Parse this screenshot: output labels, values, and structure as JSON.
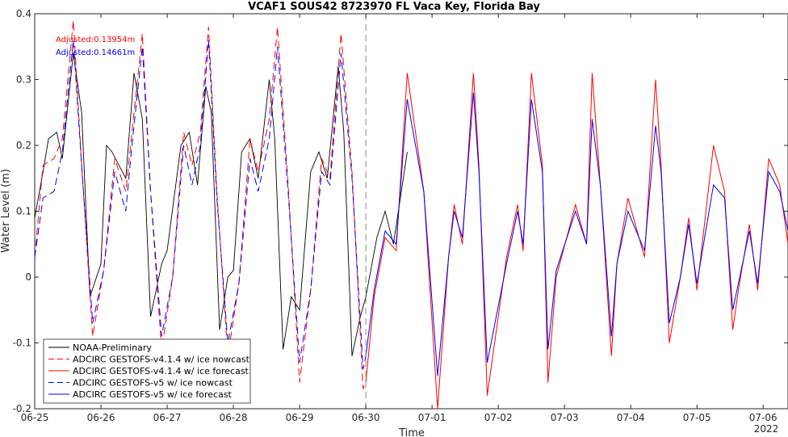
{
  "chart_data": {
    "type": "line",
    "title": "VCAF1 SOUS42 8723970 FL Vaca Key, Florida Bay",
    "xlabel": "Time",
    "ylabel": "Water Level (m)",
    "xlim": [
      "2022-06-25",
      "2022-07-06 09:00"
    ],
    "ylim": [
      -0.2,
      0.4
    ],
    "grid": false,
    "legend_position": "bottom-left",
    "x_tick_labels": [
      "06-25",
      "06-26",
      "06-27",
      "06-28",
      "06-29",
      "06-30",
      "07-01",
      "07-02",
      "07-03",
      "07-04",
      "07-05",
      "07-06"
    ],
    "x_year_label": "2022",
    "y_ticks": [
      -0.2,
      -0.1,
      0,
      0.1,
      0.2,
      0.3,
      0.4
    ],
    "y_tick_labels": [
      "-0.2",
      "-0.1",
      "0",
      "0.1",
      "0.2",
      "0.3",
      "0.4"
    ],
    "vertical_marker": "2022-06-30",
    "annotations": [
      {
        "text": "Adjusted:0.13954m",
        "color": "#ff0000"
      },
      {
        "text": "Adjusted:0.14661m",
        "color": "#0000ff"
      }
    ],
    "series": [
      {
        "name": "NOAA-Preliminary",
        "color": "#000000",
        "dash": "solid",
        "x": [
          "2022-06-25 00:00",
          "2022-06-25 03:00",
          "2022-06-25 05:00",
          "2022-06-25 08:00",
          "2022-06-25 10:00",
          "2022-06-25 14:00",
          "2022-06-25 17:00",
          "2022-06-25 20:00",
          "2022-06-26 00:00",
          "2022-06-26 02:00",
          "2022-06-26 04:00",
          "2022-06-26 09:00",
          "2022-06-26 12:00",
          "2022-06-26 15:00",
          "2022-06-26 18:00",
          "2022-06-26 22:00",
          "2022-06-27 00:00",
          "2022-06-27 05:00",
          "2022-06-27 08:00",
          "2022-06-27 11:00",
          "2022-06-27 14:00",
          "2022-06-27 16:00",
          "2022-06-27 19:00",
          "2022-06-27 22:00",
          "2022-06-28 00:00",
          "2022-06-28 03:00",
          "2022-06-28 06:00",
          "2022-06-28 09:00",
          "2022-06-28 13:00",
          "2022-06-28 15:00",
          "2022-06-28 18:00",
          "2022-06-28 21:00",
          "2022-06-29 00:00",
          "2022-06-29 04:00",
          "2022-06-29 07:00",
          "2022-06-29 10:00",
          "2022-06-29 14:00",
          "2022-06-29 16:00",
          "2022-06-29 19:00",
          "2022-06-29 22:00",
          "2022-06-30 00:00",
          "2022-06-30 04:00",
          "2022-06-30 07:00",
          "2022-06-30 10:00",
          "2022-06-30 15:00"
        ],
        "values": [
          0.09,
          0.16,
          0.21,
          0.22,
          0.18,
          0.34,
          0.25,
          -0.03,
          0.02,
          0.2,
          0.19,
          0.15,
          0.31,
          0.24,
          -0.06,
          0.02,
          0.04,
          0.2,
          0.22,
          0.14,
          0.29,
          0.25,
          -0.08,
          0.0,
          0.01,
          0.19,
          0.21,
          0.15,
          0.3,
          0.21,
          -0.11,
          -0.03,
          -0.05,
          0.16,
          0.19,
          0.15,
          0.32,
          0.22,
          -0.12,
          -0.06,
          -0.03,
          0.06,
          0.1,
          0.05,
          0.19
        ]
      },
      {
        "name": "ADCIRC GESTOFS-v4.1.4 w/ ice nowcast",
        "color": "#ff0000",
        "dash": "dashed",
        "x": [
          "2022-06-25 00:00",
          "2022-06-25 03:00",
          "2022-06-25 07:00",
          "2022-06-25 10:00",
          "2022-06-25 14:00",
          "2022-06-25 17:00",
          "2022-06-25 21:00",
          "2022-06-26 01:00",
          "2022-06-26 05:00",
          "2022-06-26 09:00",
          "2022-06-26 11:00",
          "2022-06-26 15:00",
          "2022-06-26 18:00",
          "2022-06-26 22:00",
          "2022-06-27 02:00",
          "2022-06-27 06:00",
          "2022-06-27 09:00",
          "2022-06-27 12:00",
          "2022-06-27 15:00",
          "2022-06-27 18:00",
          "2022-06-27 22:00",
          "2022-06-28 02:00",
          "2022-06-28 06:00",
          "2022-06-28 09:00",
          "2022-06-28 13:00",
          "2022-06-28 16:00",
          "2022-06-28 20:00",
          "2022-06-29 00:00",
          "2022-06-29 04:00",
          "2022-06-29 08:00",
          "2022-06-29 11:00",
          "2022-06-29 15:00",
          "2022-06-29 19:00",
          "2022-06-29 23:00",
          "2022-06-30 00:00"
        ],
        "values": [
          0.03,
          0.17,
          0.18,
          0.21,
          0.39,
          0.17,
          -0.09,
          0.01,
          0.18,
          0.13,
          0.21,
          0.37,
          0.13,
          -0.11,
          0.0,
          0.22,
          0.17,
          0.22,
          0.38,
          0.13,
          -0.12,
          -0.01,
          0.21,
          0.16,
          0.24,
          0.38,
          0.13,
          -0.16,
          -0.02,
          0.18,
          0.15,
          0.37,
          0.16,
          -0.17,
          -0.16
        ]
      },
      {
        "name": "ADCIRC GESTOFS-v4.1.4 w/ ice forecast",
        "color": "#ff0000",
        "dash": "solid",
        "x": [
          "2022-06-30 00:00",
          "2022-06-30 03:00",
          "2022-06-30 07:00",
          "2022-06-30 11:00",
          "2022-06-30 15:00",
          "2022-06-30 21:00",
          "2022-07-01 02:00",
          "2022-07-01 06:00",
          "2022-07-01 08:00",
          "2022-07-01 11:00",
          "2022-07-01 15:00",
          "2022-07-01 17:00",
          "2022-07-01 20:00",
          "2022-07-02 03:00",
          "2022-07-02 07:00",
          "2022-07-02 09:00",
          "2022-07-02 12:00",
          "2022-07-02 16:00",
          "2022-07-02 18:00",
          "2022-07-02 21:00",
          "2022-07-03 04:00",
          "2022-07-03 08:00",
          "2022-07-03 10:00",
          "2022-07-03 13:00",
          "2022-07-03 17:00",
          "2022-07-03 19:00",
          "2022-07-03 23:00",
          "2022-07-04 05:00",
          "2022-07-04 09:00",
          "2022-07-04 11:00",
          "2022-07-04 14:00",
          "2022-07-04 18:00",
          "2022-07-04 21:00",
          "2022-07-05 00:00",
          "2022-07-05 06:00",
          "2022-07-05 10:00",
          "2022-07-05 13:00",
          "2022-07-05 15:00",
          "2022-07-05 19:00",
          "2022-07-05 22:00",
          "2022-07-06 02:00",
          "2022-07-06 06:00",
          "2022-07-06 09:00"
        ],
        "values": [
          -0.16,
          -0.03,
          0.06,
          0.04,
          0.31,
          0.13,
          -0.2,
          0.03,
          0.11,
          0.05,
          0.31,
          0.17,
          -0.18,
          0.03,
          0.11,
          0.04,
          0.31,
          0.17,
          -0.16,
          0.0,
          0.11,
          0.05,
          0.31,
          0.14,
          -0.12,
          0.02,
          0.12,
          0.03,
          0.3,
          0.17,
          -0.1,
          0.0,
          0.09,
          -0.02,
          0.2,
          0.13,
          -0.08,
          -0.02,
          0.08,
          -0.02,
          0.18,
          0.14,
          0.05
        ]
      },
      {
        "name": "ADCIRC GESTOFS-v5 w/ ice nowcast",
        "color": "#0000ff",
        "dash": "dashed",
        "x": [
          "2022-06-25 00:00",
          "2022-06-25 03:00",
          "2022-06-25 07:00",
          "2022-06-25 10:00",
          "2022-06-25 14:00",
          "2022-06-25 17:00",
          "2022-06-25 21:00",
          "2022-06-26 01:00",
          "2022-06-26 05:00",
          "2022-06-26 09:00",
          "2022-06-26 11:00",
          "2022-06-26 15:00",
          "2022-06-26 18:00",
          "2022-06-26 22:00",
          "2022-06-27 02:00",
          "2022-06-27 06:00",
          "2022-06-27 09:00",
          "2022-06-27 12:00",
          "2022-06-27 15:00",
          "2022-06-27 18:00",
          "2022-06-27 22:00",
          "2022-06-28 02:00",
          "2022-06-28 06:00",
          "2022-06-28 09:00",
          "2022-06-28 13:00",
          "2022-06-28 16:00",
          "2022-06-28 20:00",
          "2022-06-29 00:00",
          "2022-06-29 04:00",
          "2022-06-29 08:00",
          "2022-06-29 11:00",
          "2022-06-29 15:00",
          "2022-06-29 19:00",
          "2022-06-29 23:00",
          "2022-06-30 00:00"
        ],
        "values": [
          0.03,
          0.12,
          0.13,
          0.19,
          0.36,
          0.17,
          -0.07,
          0.01,
          0.16,
          0.1,
          0.19,
          0.35,
          0.13,
          -0.09,
          0.0,
          0.2,
          0.14,
          0.2,
          0.36,
          0.12,
          -0.1,
          -0.01,
          0.18,
          0.13,
          0.21,
          0.35,
          0.12,
          -0.13,
          -0.02,
          0.16,
          0.14,
          0.34,
          0.15,
          -0.14,
          -0.12
        ]
      },
      {
        "name": "ADCIRC GESTOFS-v5 w/ ice forecast",
        "color": "#0000ff",
        "dash": "solid",
        "x": [
          "2022-06-30 00:00",
          "2022-06-30 03:00",
          "2022-06-30 07:00",
          "2022-06-30 11:00",
          "2022-06-30 15:00",
          "2022-06-30 21:00",
          "2022-07-01 02:00",
          "2022-07-01 06:00",
          "2022-07-01 08:00",
          "2022-07-01 11:00",
          "2022-07-01 15:00",
          "2022-07-01 17:00",
          "2022-07-01 20:00",
          "2022-07-02 03:00",
          "2022-07-02 07:00",
          "2022-07-02 09:00",
          "2022-07-02 12:00",
          "2022-07-02 16:00",
          "2022-07-02 18:00",
          "2022-07-02 21:00",
          "2022-07-03 04:00",
          "2022-07-03 08:00",
          "2022-07-03 10:00",
          "2022-07-03 13:00",
          "2022-07-03 17:00",
          "2022-07-03 19:00",
          "2022-07-03 23:00",
          "2022-07-04 05:00",
          "2022-07-04 09:00",
          "2022-07-04 11:00",
          "2022-07-04 14:00",
          "2022-07-04 18:00",
          "2022-07-04 21:00",
          "2022-07-05 00:00",
          "2022-07-05 06:00",
          "2022-07-05 10:00",
          "2022-07-05 13:00",
          "2022-07-05 15:00",
          "2022-07-05 19:00",
          "2022-07-05 22:00",
          "2022-07-06 02:00",
          "2022-07-06 06:00",
          "2022-07-06 09:00"
        ],
        "values": [
          -0.12,
          -0.02,
          0.07,
          0.05,
          0.27,
          0.13,
          -0.15,
          0.03,
          0.1,
          0.06,
          0.28,
          0.16,
          -0.13,
          0.02,
          0.1,
          0.05,
          0.27,
          0.16,
          -0.11,
          0.01,
          0.1,
          0.05,
          0.24,
          0.14,
          -0.09,
          0.02,
          0.1,
          0.04,
          0.23,
          0.16,
          -0.07,
          0.0,
          0.08,
          -0.01,
          0.14,
          0.12,
          -0.05,
          -0.01,
          0.07,
          -0.01,
          0.16,
          0.13,
          0.07
        ]
      }
    ]
  }
}
